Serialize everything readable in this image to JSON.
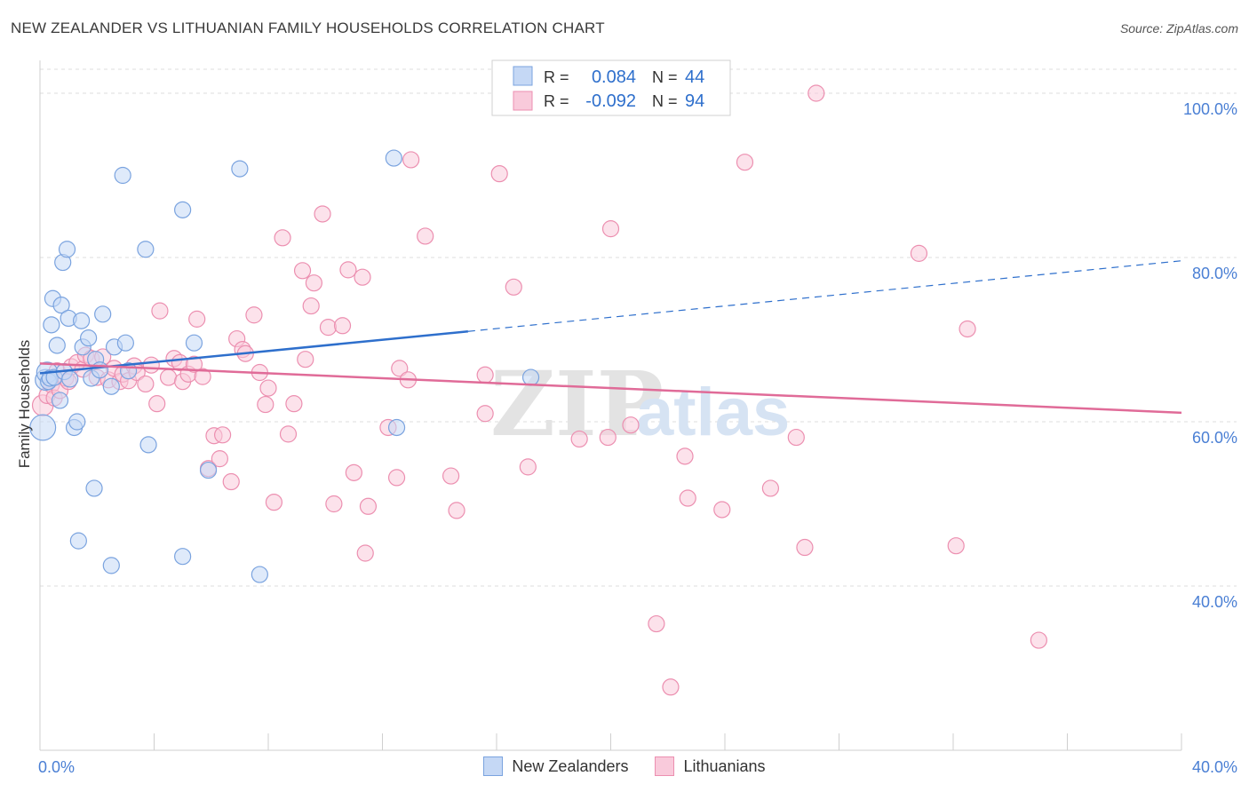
{
  "title": "NEW ZEALANDER VS LITHUANIAN FAMILY HOUSEHOLDS CORRELATION CHART",
  "source": "Source: ZipAtlas.com",
  "watermark": {
    "zip": "ZIP",
    "atlas": "atlas"
  },
  "colors": {
    "blue_fill": "#c5d8f5",
    "blue_stroke": "#7aa3df",
    "blue_line": "#2e6fcc",
    "pink_fill": "#f9cadb",
    "pink_stroke": "#ec8fb0",
    "pink_line": "#e06b98",
    "tick_label": "#4a7fd4",
    "grid": "#dddddd"
  },
  "legend_box": [
    {
      "r_label": "R =",
      "r_value": "0.084",
      "n_label": "N =",
      "n_value": "44"
    },
    {
      "r_label": "R =",
      "r_value": "-0.092",
      "n_label": "N =",
      "n_value": "94"
    }
  ],
  "chart_data": {
    "type": "scatter",
    "title": "NEW ZEALANDER VS LITHUANIAN FAMILY HOUSEHOLDS CORRELATION CHART",
    "xlabel": "",
    "ylabel": "Family Households",
    "xlim": [
      0,
      40
    ],
    "ylim": [
      20,
      104
    ],
    "x_tick_labels": [
      "0.0%",
      "40.0%"
    ],
    "y_ticks": [
      40,
      60,
      80,
      100
    ],
    "y_tick_labels": [
      "40.0%",
      "60.0%",
      "80.0%",
      "100.0%"
    ],
    "grid": true,
    "legend_position": "bottom",
    "series": [
      {
        "name": "New Zealanders",
        "color": "blue",
        "trend": {
          "x": [
            0,
            15,
            40
          ],
          "y": [
            65.9,
            71.0,
            79.6
          ],
          "solid_until": 15
        },
        "points": [
          [
            0.1,
            59.3,
            1.6
          ],
          [
            0.2,
            65.1,
            1.3
          ],
          [
            0.25,
            66.0,
            1.3
          ],
          [
            0.3,
            64.9,
            1.0
          ],
          [
            0.35,
            65.3,
            1.0
          ],
          [
            0.4,
            71.8,
            1.0
          ],
          [
            0.45,
            75.0,
            1.0
          ],
          [
            0.5,
            65.4,
            1.0
          ],
          [
            0.6,
            69.3,
            1.0
          ],
          [
            0.7,
            62.6,
            1.0
          ],
          [
            0.75,
            74.2,
            1.0
          ],
          [
            0.8,
            79.4,
            1.0
          ],
          [
            0.85,
            66.1,
            1.0
          ],
          [
            0.95,
            81.0,
            1.0
          ],
          [
            1.0,
            72.6,
            1.0
          ],
          [
            1.05,
            65.2,
            1.0
          ],
          [
            1.2,
            59.3,
            1.0
          ],
          [
            1.3,
            60.0,
            1.0
          ],
          [
            1.35,
            45.5,
            1.0
          ],
          [
            1.45,
            72.3,
            1.0
          ],
          [
            1.5,
            69.1,
            1.0
          ],
          [
            1.7,
            70.2,
            1.0
          ],
          [
            1.8,
            65.3,
            1.0
          ],
          [
            1.9,
            51.9,
            1.0
          ],
          [
            1.95,
            67.6,
            1.0
          ],
          [
            2.1,
            66.3,
            1.0
          ],
          [
            2.2,
            73.1,
            1.0
          ],
          [
            2.5,
            64.3,
            1.0
          ],
          [
            2.5,
            42.5,
            1.0
          ],
          [
            2.6,
            69.1,
            1.0
          ],
          [
            2.9,
            90.0,
            1.0
          ],
          [
            3.0,
            69.6,
            1.0
          ],
          [
            3.1,
            66.2,
            1.0
          ],
          [
            3.7,
            81.0,
            1.0
          ],
          [
            3.8,
            57.2,
            1.0
          ],
          [
            5.0,
            85.8,
            1.0
          ],
          [
            5.0,
            43.6,
            1.0
          ],
          [
            5.4,
            69.6,
            1.0
          ],
          [
            5.9,
            54.1,
            1.0
          ],
          [
            7.0,
            90.8,
            1.0
          ],
          [
            7.7,
            41.4,
            1.0
          ],
          [
            12.4,
            92.1,
            1.0
          ],
          [
            12.5,
            59.3,
            1.0
          ],
          [
            17.2,
            65.4,
            1.0
          ]
        ]
      },
      {
        "name": "Lithuanians",
        "color": "pink",
        "trend": {
          "x": [
            0,
            40
          ],
          "y": [
            67.1,
            61.1
          ]
        },
        "points": [
          [
            0.1,
            62.0,
            1.3
          ],
          [
            0.25,
            63.2,
            1.0
          ],
          [
            0.4,
            64.5,
            1.0
          ],
          [
            0.5,
            62.9,
            1.0
          ],
          [
            0.6,
            66.2,
            1.0
          ],
          [
            0.7,
            63.8,
            1.0
          ],
          [
            0.9,
            65.3,
            1.0
          ],
          [
            1.0,
            64.9,
            1.0
          ],
          [
            1.1,
            66.7,
            1.0
          ],
          [
            1.3,
            67.2,
            1.0
          ],
          [
            1.5,
            66.4,
            1.0
          ],
          [
            1.6,
            68.1,
            1.0
          ],
          [
            1.8,
            67.7,
            1.0
          ],
          [
            2.0,
            65.4,
            1.0
          ],
          [
            2.2,
            67.9,
            1.0
          ],
          [
            2.4,
            65.1,
            1.0
          ],
          [
            2.6,
            66.5,
            1.0
          ],
          [
            2.8,
            64.9,
            1.0
          ],
          [
            2.9,
            65.8,
            1.0
          ],
          [
            3.1,
            65.0,
            1.0
          ],
          [
            3.3,
            66.8,
            1.0
          ],
          [
            3.4,
            66.0,
            1.0
          ],
          [
            3.7,
            64.6,
            1.0
          ],
          [
            3.9,
            66.9,
            1.0
          ],
          [
            4.1,
            62.2,
            1.0
          ],
          [
            4.2,
            73.5,
            1.0
          ],
          [
            4.5,
            65.4,
            1.0
          ],
          [
            4.7,
            67.7,
            1.0
          ],
          [
            4.9,
            67.2,
            1.0
          ],
          [
            5.0,
            64.9,
            1.0
          ],
          [
            5.2,
            65.8,
            1.0
          ],
          [
            5.4,
            67.0,
            1.0
          ],
          [
            5.5,
            72.5,
            1.0
          ],
          [
            5.7,
            65.5,
            1.0
          ],
          [
            5.9,
            54.3,
            1.0
          ],
          [
            6.1,
            58.3,
            1.0
          ],
          [
            6.3,
            55.5,
            1.0
          ],
          [
            6.4,
            58.4,
            1.0
          ],
          [
            6.7,
            52.7,
            1.0
          ],
          [
            6.9,
            70.1,
            1.0
          ],
          [
            7.1,
            68.8,
            1.0
          ],
          [
            7.2,
            68.3,
            1.0
          ],
          [
            7.5,
            73.0,
            1.0
          ],
          [
            7.7,
            66.0,
            1.0
          ],
          [
            7.9,
            62.1,
            1.0
          ],
          [
            8.0,
            64.1,
            1.0
          ],
          [
            8.2,
            50.2,
            1.0
          ],
          [
            8.5,
            82.4,
            1.0
          ],
          [
            8.7,
            58.5,
            1.0
          ],
          [
            8.9,
            62.2,
            1.0
          ],
          [
            9.2,
            78.4,
            1.0
          ],
          [
            9.3,
            67.6,
            1.0
          ],
          [
            9.5,
            74.1,
            1.0
          ],
          [
            9.6,
            76.9,
            1.0
          ],
          [
            9.9,
            85.3,
            1.0
          ],
          [
            10.1,
            71.5,
            1.0
          ],
          [
            10.3,
            50.0,
            1.0
          ],
          [
            10.6,
            71.7,
            1.0
          ],
          [
            10.8,
            78.5,
            1.0
          ],
          [
            11.0,
            53.8,
            1.0
          ],
          [
            11.3,
            77.6,
            1.0
          ],
          [
            11.4,
            44.0,
            1.0
          ],
          [
            11.5,
            49.7,
            1.0
          ],
          [
            12.2,
            59.3,
            1.0
          ],
          [
            12.5,
            53.2,
            1.0
          ],
          [
            12.6,
            66.5,
            1.0
          ],
          [
            12.9,
            65.1,
            1.0
          ],
          [
            13.0,
            91.9,
            1.0
          ],
          [
            13.5,
            82.6,
            1.0
          ],
          [
            14.4,
            53.4,
            1.0
          ],
          [
            14.6,
            49.2,
            1.0
          ],
          [
            15.6,
            61.0,
            1.0
          ],
          [
            15.6,
            65.7,
            1.0
          ],
          [
            16.1,
            90.2,
            1.0
          ],
          [
            16.6,
            76.4,
            1.0
          ],
          [
            17.1,
            54.5,
            1.0
          ],
          [
            17.7,
            100.1,
            1.0
          ],
          [
            18.9,
            57.9,
            1.0
          ],
          [
            19.9,
            58.1,
            1.0
          ],
          [
            20.0,
            83.5,
            1.0
          ],
          [
            20.7,
            59.6,
            1.0
          ],
          [
            21.6,
            35.4,
            1.0
          ],
          [
            22.1,
            27.7,
            1.0
          ],
          [
            22.6,
            55.8,
            1.0
          ],
          [
            22.7,
            50.7,
            1.0
          ],
          [
            23.9,
            49.3,
            1.0
          ],
          [
            24.7,
            91.6,
            1.0
          ],
          [
            25.6,
            51.9,
            1.0
          ],
          [
            26.5,
            58.1,
            1.0
          ],
          [
            26.8,
            44.7,
            1.0
          ],
          [
            27.2,
            100.0,
            1.0
          ],
          [
            30.8,
            80.5,
            1.0
          ],
          [
            32.1,
            44.9,
            1.0
          ],
          [
            32.5,
            71.3,
            1.0
          ],
          [
            35.0,
            33.4,
            1.0
          ]
        ]
      }
    ]
  }
}
